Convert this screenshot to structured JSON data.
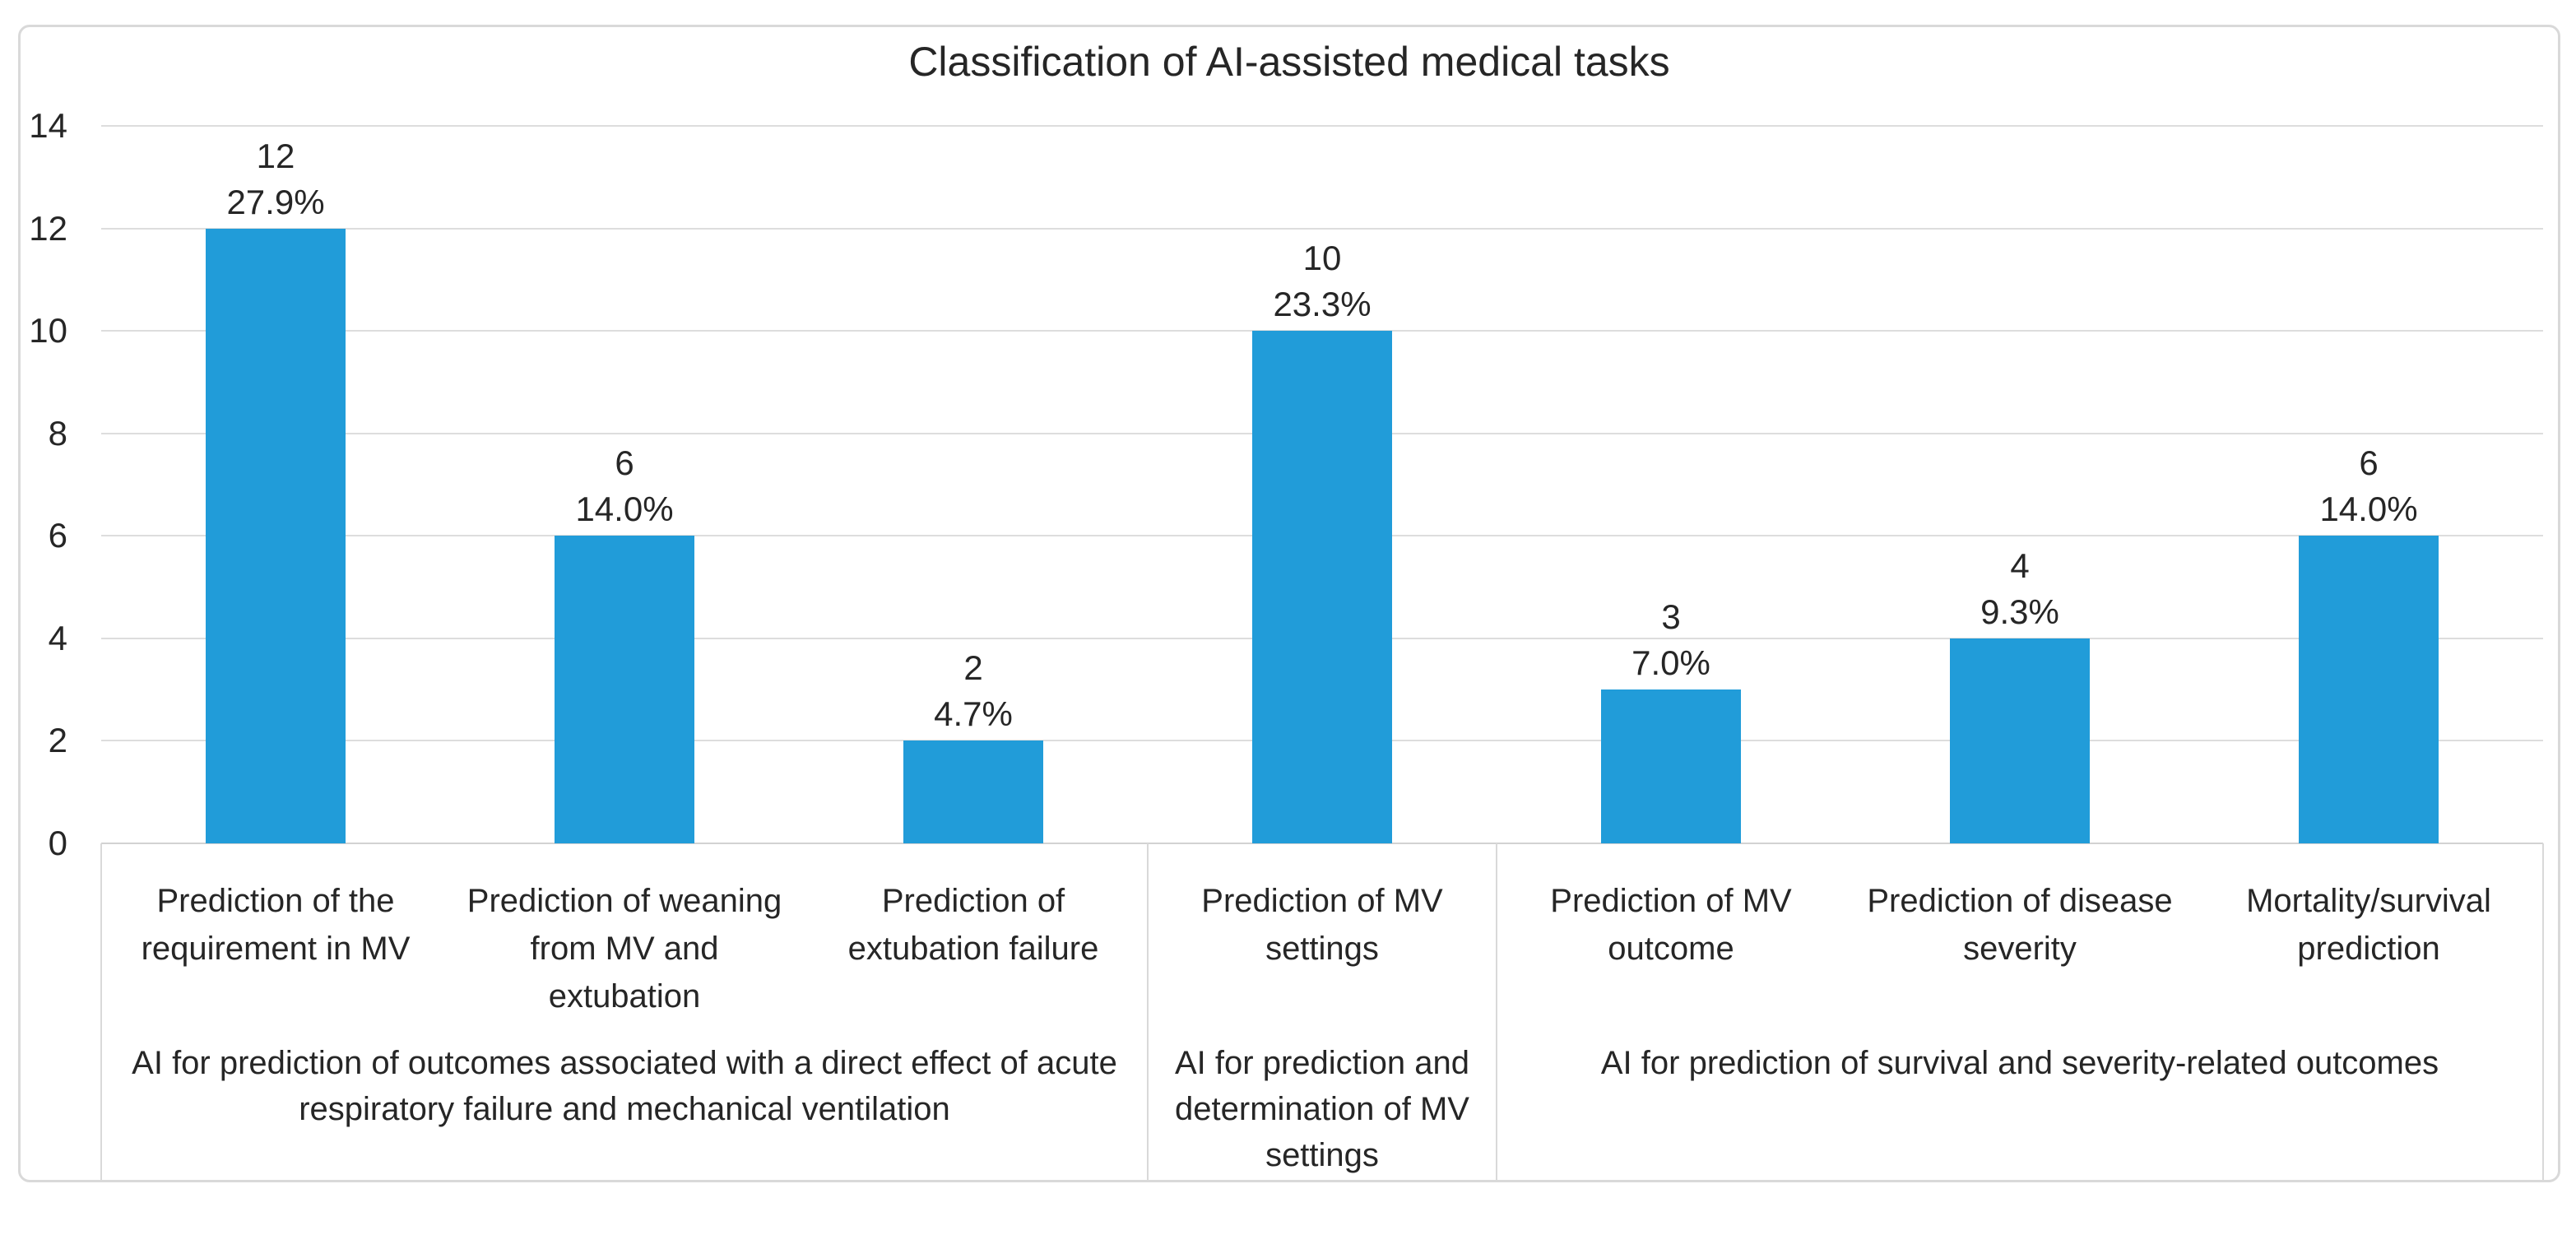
{
  "window": {
    "background": "#ffffff",
    "border_color": "#d9d9d9"
  },
  "chart_data": {
    "type": "bar",
    "title": "Classification of AI-assisted medical tasks",
    "categories": [
      "Prediction of the requirement in MV",
      "Prediction of weaning from MV and extubation",
      "Prediction of extubation failure",
      "Prediction of MV settings",
      "Prediction of MV outcome",
      "Prediction of disease severity",
      "Mortality/survival prediction"
    ],
    "values": [
      12,
      6,
      2,
      10,
      3,
      4,
      6
    ],
    "percent_labels": [
      "27.9%",
      "14.0%",
      "4.7%",
      "23.3%",
      "7.0%",
      "9.3%",
      "14.0%"
    ],
    "group_labels": [
      {
        "label": "AI for prediction of outcomes associated with a direct effect of acute respiratory failure and mechanical ventilation",
        "start": 0,
        "end": 2
      },
      {
        "label": "AI for prediction and determination of MV settings",
        "start": 3,
        "end": 3
      },
      {
        "label": "AI for prediction of survival and severity-related outcomes",
        "start": 4,
        "end": 6
      }
    ],
    "y_ticks": [
      0,
      2,
      4,
      6,
      8,
      10,
      12,
      14
    ],
    "ylim": [
      0,
      14
    ],
    "bar_color": "#219cd9",
    "text_color": "#262626",
    "gridline_color": "#dddddd",
    "grid": true,
    "legend": false,
    "xlabel": "",
    "ylabel": ""
  }
}
